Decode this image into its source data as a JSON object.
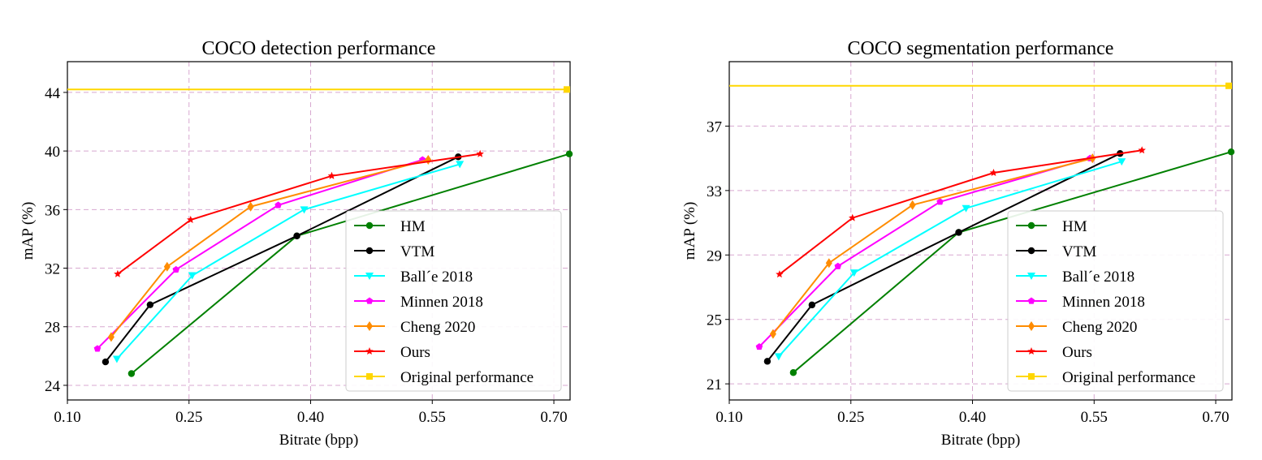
{
  "legend_entries": [
    {
      "name": "HM",
      "color": "#008000",
      "marker": "circle"
    },
    {
      "name": "VTM",
      "color": "#000000",
      "marker": "circle"
    },
    {
      "name": "Ball´e 2018",
      "color": "#00ffff",
      "marker": "triangle-down"
    },
    {
      "name": "Minnen 2018",
      "color": "#ff00ff",
      "marker": "pentagon"
    },
    {
      "name": "Cheng 2020",
      "color": "#ff8c00",
      "marker": "diamond"
    },
    {
      "name": "Ours",
      "color": "#ff0000",
      "marker": "star"
    },
    {
      "name": "Original performance",
      "color": "#ffd700",
      "marker": "square"
    }
  ],
  "chart_data": [
    {
      "type": "line",
      "title": "COCO detection performance",
      "xlabel": "Bitrate (bpp)",
      "ylabel": "mAP (%)",
      "xlim": [
        0.1,
        0.72
      ],
      "ylim": [
        23.0,
        46.1
      ],
      "xticks": [
        "0.10",
        "0.25",
        "0.40",
        "0.55",
        "0.70"
      ],
      "yticks": [
        "24",
        "28",
        "32",
        "36",
        "40",
        "44"
      ],
      "grid": true,
      "legend_position": "lower-right",
      "series": [
        {
          "name": "HM",
          "points": [
            [
              0.179,
              24.8
            ],
            [
              0.383,
              34.2
            ],
            [
              0.719,
              39.8
            ]
          ]
        },
        {
          "name": "VTM",
          "points": [
            [
              0.147,
              25.6
            ],
            [
              0.202,
              29.5
            ],
            [
              0.383,
              34.2
            ],
            [
              0.582,
              39.6
            ]
          ]
        },
        {
          "name": "Ball´e 2018",
          "points": [
            [
              0.161,
              25.8
            ],
            [
              0.254,
              31.5
            ],
            [
              0.392,
              36.0
            ],
            [
              0.584,
              39.1
            ]
          ]
        },
        {
          "name": "Minnen 2018",
          "points": [
            [
              0.137,
              26.5
            ],
            [
              0.234,
              31.9
            ],
            [
              0.36,
              36.3
            ],
            [
              0.538,
              39.4
            ]
          ]
        },
        {
          "name": "Cheng 2020",
          "points": [
            [
              0.154,
              27.3
            ],
            [
              0.223,
              32.1
            ],
            [
              0.326,
              36.2
            ],
            [
              0.545,
              39.4
            ]
          ]
        },
        {
          "name": "Ours",
          "points": [
            [
              0.162,
              31.6
            ],
            [
              0.252,
              35.3
            ],
            [
              0.426,
              38.3
            ],
            [
              0.609,
              39.8
            ]
          ]
        },
        {
          "name": "Original performance",
          "points": [
            [
              0.1,
              44.2
            ],
            [
              0.716,
              44.2
            ]
          ]
        }
      ]
    },
    {
      "type": "line",
      "title": "COCO segmentation performance",
      "xlabel": "Bitrate (bpp)",
      "ylabel": "mAP (%)",
      "xlim": [
        0.1,
        0.72
      ],
      "ylim": [
        20.0,
        41.0
      ],
      "xticks": [
        "0.10",
        "0.25",
        "0.40",
        "0.55",
        "0.70"
      ],
      "yticks": [
        "21",
        "25",
        "29",
        "33",
        "37"
      ],
      "grid": true,
      "legend_position": "lower-right",
      "series": [
        {
          "name": "HM",
          "points": [
            [
              0.179,
              21.7
            ],
            [
              0.383,
              30.4
            ],
            [
              0.719,
              35.4
            ]
          ]
        },
        {
          "name": "VTM",
          "points": [
            [
              0.147,
              22.4
            ],
            [
              0.202,
              25.9
            ],
            [
              0.383,
              30.4
            ],
            [
              0.582,
              35.3
            ]
          ]
        },
        {
          "name": "Ball´e 2018",
          "points": [
            [
              0.161,
              22.7
            ],
            [
              0.254,
              27.9
            ],
            [
              0.392,
              31.9
            ],
            [
              0.584,
              34.8
            ]
          ]
        },
        {
          "name": "Minnen 2018",
          "points": [
            [
              0.137,
              23.3
            ],
            [
              0.234,
              28.3
            ],
            [
              0.36,
              32.3
            ],
            [
              0.545,
              35.0
            ]
          ]
        },
        {
          "name": "Cheng 2020",
          "points": [
            [
              0.154,
              24.1
            ],
            [
              0.223,
              28.5
            ],
            [
              0.326,
              32.1
            ],
            [
              0.548,
              35.0
            ]
          ]
        },
        {
          "name": "Ours",
          "points": [
            [
              0.162,
              27.8
            ],
            [
              0.252,
              31.3
            ],
            [
              0.426,
              34.1
            ],
            [
              0.609,
              35.5
            ]
          ]
        },
        {
          "name": "Original performance",
          "points": [
            [
              0.1,
              39.5
            ],
            [
              0.716,
              39.5
            ]
          ]
        }
      ]
    }
  ]
}
